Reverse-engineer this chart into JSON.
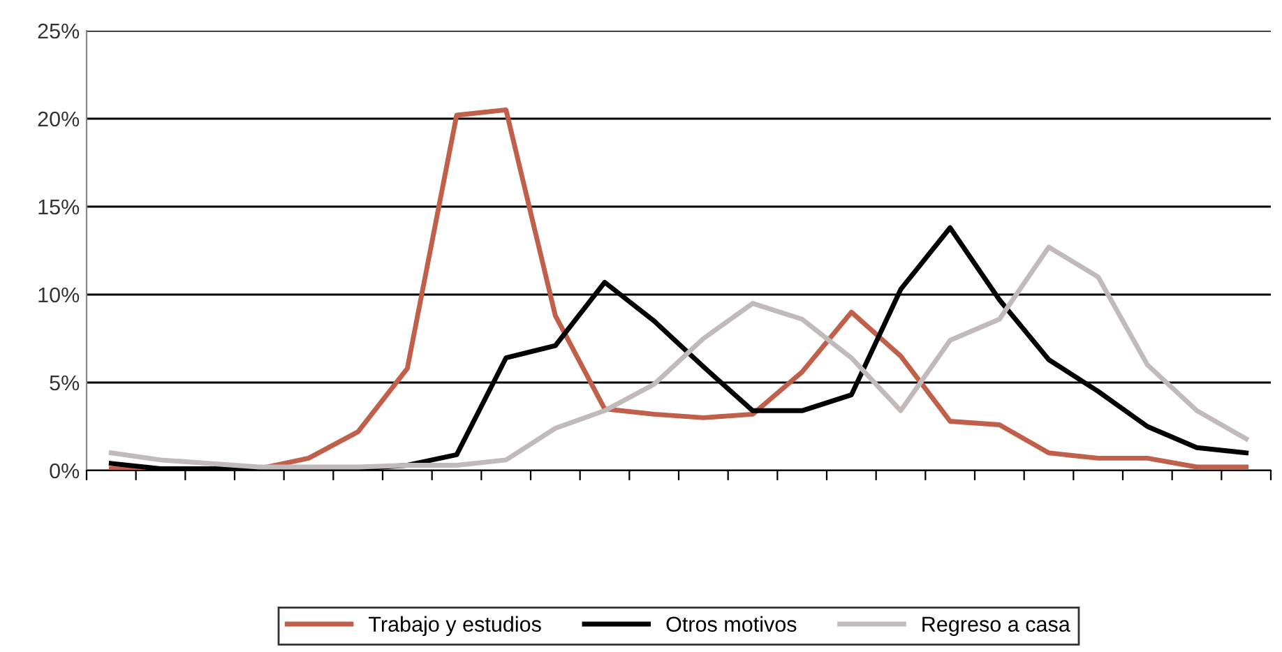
{
  "chart_data": {
    "type": "line",
    "categories": [
      null,
      null,
      null,
      null,
      null,
      null,
      null,
      null,
      null,
      null,
      null,
      null,
      null,
      null,
      null,
      null,
      null,
      null,
      null,
      null,
      null,
      null,
      null,
      null
    ],
    "series": [
      {
        "name": "Trabajo y estudios",
        "color": "#c0604a",
        "values": [
          0.1,
          0,
          0,
          0.1,
          0.7,
          2.2,
          5.8,
          20.2,
          20.5,
          8.8,
          3.5,
          3.2,
          3.0,
          3.2,
          5.6,
          9.0,
          6.5,
          2.8,
          2.6,
          1.0,
          0.7,
          0.7,
          0.2,
          0.2
        ]
      },
      {
        "name": "Otros motivos",
        "color": "#000000",
        "values": [
          0.4,
          0.1,
          0.1,
          0.1,
          0.1,
          0.1,
          0.3,
          0.9,
          6.4,
          7.1,
          10.7,
          8.5,
          5.9,
          3.4,
          3.4,
          4.3,
          10.3,
          13.8,
          9.7,
          6.3,
          4.5,
          2.5,
          1.3,
          1.0
        ]
      },
      {
        "name": "Regreso a casa",
        "color": "#c2baba",
        "values": [
          1.0,
          0.6,
          0.4,
          0.2,
          0.2,
          0.2,
          0.3,
          0.3,
          0.6,
          2.4,
          3.4,
          4.9,
          7.5,
          9.5,
          8.6,
          6.4,
          3.4,
          7.4,
          8.6,
          12.7,
          11.0,
          6.0,
          3.4,
          1.8
        ]
      }
    ],
    "ylim": [
      0,
      25
    ],
    "yticks": [
      {
        "value": 0,
        "label": "0%"
      },
      {
        "value": 5,
        "label": "5%"
      },
      {
        "value": 10,
        "label": "10%"
      },
      {
        "value": 15,
        "label": "15%"
      },
      {
        "value": 20,
        "label": "20%"
      },
      {
        "value": 25,
        "label": "25%"
      }
    ],
    "grid": "y",
    "legend": "bottom",
    "tick_labels": "y",
    "marker": "none",
    "line_style": "solid"
  }
}
